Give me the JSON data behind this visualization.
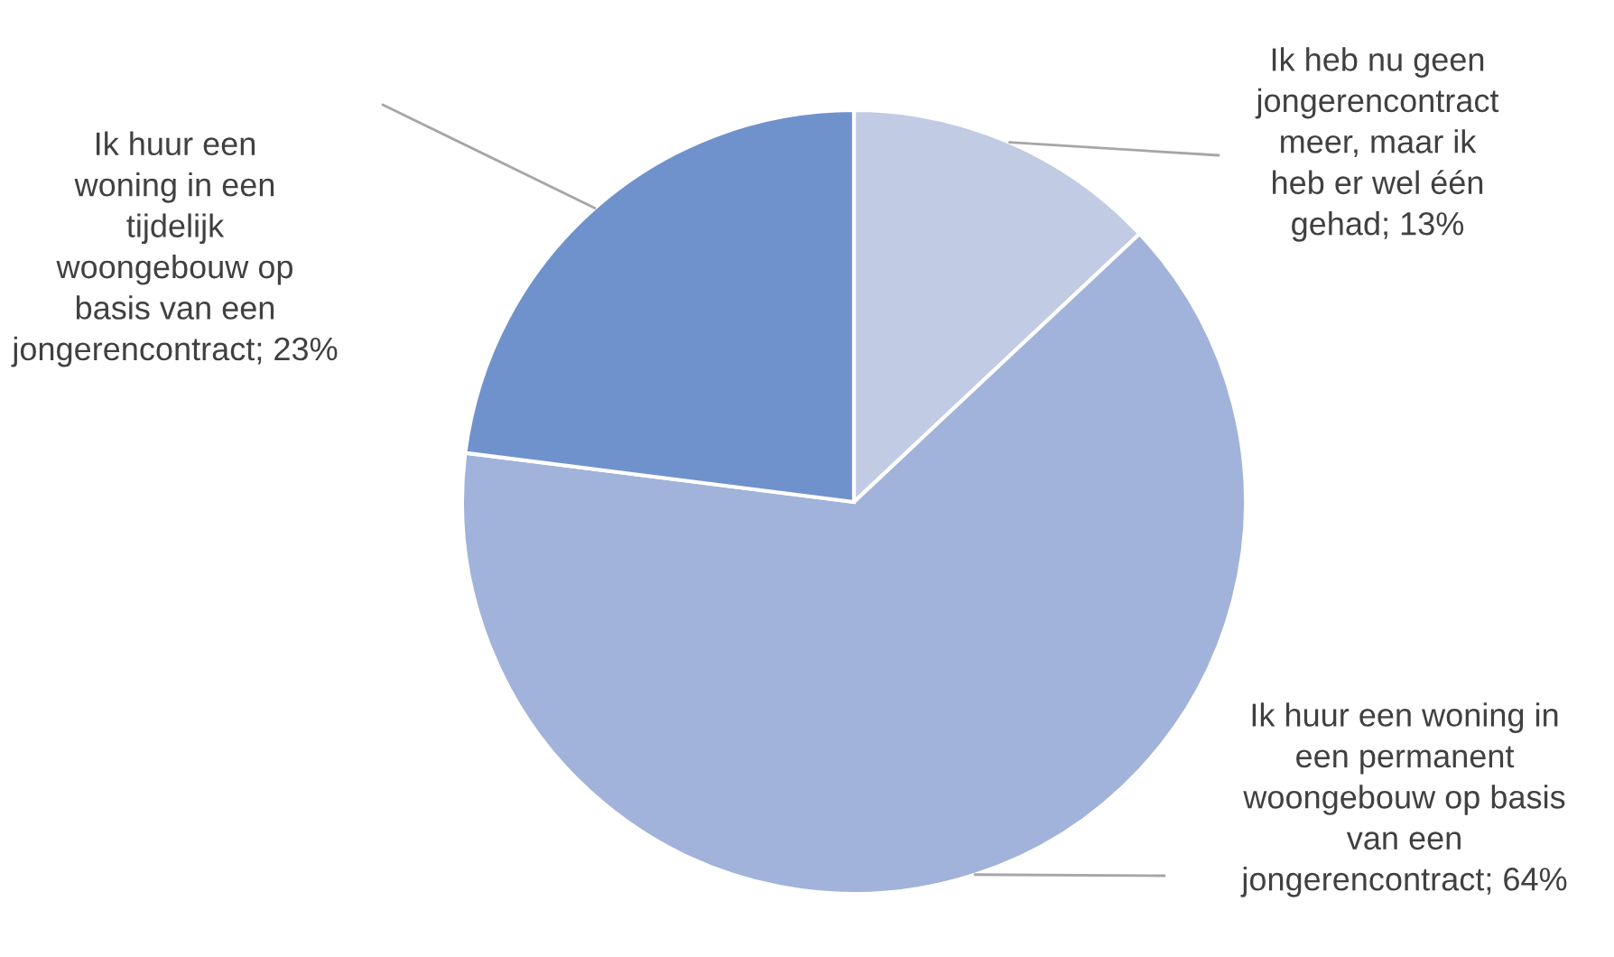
{
  "chart_data": {
    "type": "pie",
    "categories": [
      "Ik heb nu geen jongerencontract meer, maar ik heb er wel één gehad",
      "Ik huur een woning in een permanent woongebouw op basis van een jongerencontract",
      "Ik huur een woning in een tijdelijk woongebouw op basis van een jongerencontract"
    ],
    "values": [
      13,
      64,
      23
    ],
    "value_labels": [
      "13%",
      "64%",
      "23%"
    ],
    "colors": [
      "#c2cbe4",
      "#a1b3da",
      "#7092cc"
    ],
    "legend": false
  }
}
